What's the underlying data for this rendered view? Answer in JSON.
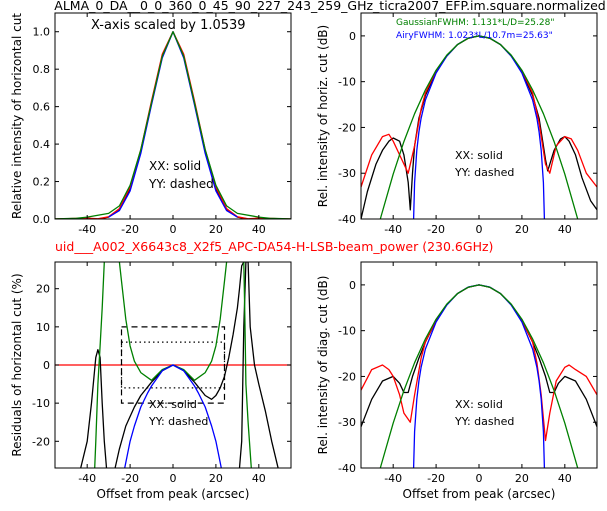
{
  "figure": {
    "title": "ALMA_0_DA__0_0_360_0_45_90_227_243_259_GHz_ticra2007_EFP.im.square.normalized",
    "subtitle": "uid___A002_X6643c8_X2f5_APC-DA54-H-LSB-beam_power (230.6GHz)",
    "subtitle_color": "#ff0000"
  },
  "colors": {
    "red": "#ff0000",
    "green": "#008000",
    "blue": "#0000ff",
    "black": "#000000"
  },
  "chart_data": [
    {
      "id": "top-left",
      "type": "line",
      "annotation": "X-axis scaled by 1.0539",
      "text_notes": [
        "XX: solid",
        "YY: dashed"
      ],
      "xlabel": "",
      "ylabel": "Relative intensity of horizontal cut",
      "xlim": [
        -55,
        55
      ],
      "ylim": [
        0,
        1.1
      ],
      "xticks": [
        -40,
        -20,
        0,
        20,
        40
      ],
      "yticks": [
        0.0,
        0.2,
        0.4,
        0.6,
        0.8,
        1.0
      ],
      "ytick_labels": [
        "0.0",
        "0.2",
        "0.4",
        "0.6",
        "0.8",
        "1.0"
      ],
      "series": [
        {
          "color": "black",
          "x": [
            -55,
            -45,
            -40,
            -35,
            -30,
            -25,
            -20,
            -15,
            -10,
            -5,
            0,
            5,
            10,
            15,
            20,
            25,
            30,
            35,
            40,
            45,
            55
          ],
          "y": [
            0,
            0.002,
            0.003,
            0,
            0.01,
            0.05,
            0.16,
            0.36,
            0.62,
            0.87,
            1.0,
            0.87,
            0.62,
            0.36,
            0.16,
            0.05,
            0.01,
            0,
            0.003,
            0.002,
            0
          ]
        },
        {
          "color": "red",
          "x": [
            -55,
            -45,
            -40,
            -35,
            -30,
            -25,
            -20,
            -15,
            -10,
            -5,
            0,
            5,
            10,
            15,
            20,
            25,
            30,
            35,
            40,
            45,
            55
          ],
          "y": [
            0,
            0.003,
            0.005,
            0.001,
            0.012,
            0.055,
            0.17,
            0.37,
            0.63,
            0.88,
            1.0,
            0.88,
            0.63,
            0.37,
            0.17,
            0.055,
            0.012,
            0.001,
            0.005,
            0.003,
            0
          ]
        },
        {
          "color": "blue",
          "x": [
            -30,
            -25,
            -20,
            -15,
            -10,
            -5,
            0,
            5,
            10,
            15,
            20,
            25,
            30
          ],
          "y": [
            0.01,
            0.045,
            0.15,
            0.35,
            0.61,
            0.86,
            1.0,
            0.86,
            0.61,
            0.35,
            0.15,
            0.045,
            0.01
          ]
        },
        {
          "color": "green",
          "x": [
            -55,
            -45,
            -40,
            -30,
            -25,
            -20,
            -15,
            -10,
            -5,
            0,
            5,
            10,
            15,
            20,
            25,
            30,
            40,
            45,
            55
          ],
          "y": [
            0.0005,
            0.004,
            0.01,
            0.03,
            0.07,
            0.18,
            0.37,
            0.62,
            0.87,
            1.0,
            0.87,
            0.62,
            0.37,
            0.18,
            0.07,
            0.03,
            0.01,
            0.004,
            0.0005
          ]
        }
      ]
    },
    {
      "id": "top-right",
      "type": "line",
      "legend_texts": [
        {
          "text": "GaussianFWHM: 1.131*L/D=25.28\"",
          "color": "green"
        },
        {
          "text": "AiryFWHM: 1.023*L/10.7m=25.63\"",
          "color": "blue"
        }
      ],
      "text_notes": [
        "XX: solid",
        "YY: dashed"
      ],
      "xlabel": "",
      "ylabel": "Rel. intensity of horiz. cut (dB)",
      "xlim": [
        -55,
        55
      ],
      "ylim": [
        -40,
        5
      ],
      "xticks": [
        -40,
        -20,
        0,
        20,
        40
      ],
      "yticks": [
        -40,
        -30,
        -20,
        -10,
        0
      ],
      "series": [
        {
          "color": "black",
          "x": [
            -55,
            -52,
            -48,
            -45,
            -42,
            -40,
            -37,
            -35,
            -33,
            -32,
            -31,
            -30,
            -28,
            -25,
            -20,
            -15,
            -10,
            -5,
            0,
            5,
            10,
            15,
            20,
            25,
            28,
            30,
            31,
            32,
            35,
            38,
            40,
            42,
            45,
            48,
            52,
            55
          ],
          "y": [
            -40,
            -34,
            -28,
            -25,
            -23,
            -22.3,
            -23,
            -26,
            -32,
            -38,
            -30,
            -24,
            -18,
            -13,
            -7.8,
            -4.4,
            -1.9,
            -0.5,
            0,
            -0.5,
            -1.9,
            -4.4,
            -7.8,
            -13,
            -18,
            -24,
            -27,
            -29.5,
            -25,
            -22.5,
            -22,
            -23,
            -26,
            -31,
            -36,
            -38
          ]
        },
        {
          "color": "red",
          "x": [
            -55,
            -50,
            -45,
            -42,
            -40,
            -37,
            -33,
            -30,
            -27,
            -25,
            -20,
            -15,
            -10,
            -5,
            0,
            5,
            10,
            15,
            20,
            25,
            28,
            31,
            33,
            36,
            40,
            43,
            46,
            50,
            55
          ],
          "y": [
            -33,
            -26,
            -22,
            -21.5,
            -23,
            -26,
            -30,
            -24,
            -16,
            -12.5,
            -7.6,
            -4.3,
            -1.9,
            -0.5,
            0,
            -0.5,
            -1.9,
            -4.3,
            -7.6,
            -12.5,
            -19,
            -28,
            -30,
            -24,
            -22,
            -22.5,
            -25,
            -30,
            -33
          ]
        },
        {
          "color": "blue",
          "x": [
            -30.5,
            -30,
            -29,
            -28,
            -27,
            -25,
            -20,
            -15,
            -10,
            -5,
            0,
            5,
            10,
            15,
            20,
            25,
            27,
            28,
            29,
            30,
            30.5
          ],
          "y": [
            -40,
            -32,
            -25,
            -21,
            -18,
            -14,
            -8.1,
            -4.4,
            -1.9,
            -0.46,
            0,
            -0.46,
            -1.9,
            -4.4,
            -8.1,
            -14,
            -18,
            -21,
            -25,
            -32,
            -40
          ]
        },
        {
          "color": "green",
          "x": [
            -46,
            -40,
            -35,
            -30,
            -25,
            -20,
            -15,
            -10,
            -5,
            0,
            5,
            10,
            15,
            20,
            25,
            30,
            35,
            40,
            46
          ],
          "y": [
            -40,
            -30.2,
            -23.1,
            -17,
            -11.8,
            -7.5,
            -4.2,
            -1.9,
            -0.5,
            0,
            -0.5,
            -1.9,
            -4.2,
            -7.5,
            -11.8,
            -17,
            -23.1,
            -30.2,
            -40
          ]
        }
      ]
    },
    {
      "id": "bottom-left",
      "type": "line",
      "text_notes": [
        "XX: solid",
        "YY: dashed"
      ],
      "xlabel": "Offset from peak (arcsec)",
      "ylabel": "Residuals of horizontal cut (%)",
      "xlim": [
        -55,
        55
      ],
      "ylim": [
        -27,
        27
      ],
      "xticks": [
        -40,
        -20,
        0,
        20,
        40
      ],
      "yticks": [
        -20,
        -10,
        0,
        10,
        20
      ],
      "reference_line": {
        "y": 0,
        "color": "red"
      },
      "boxes": [
        {
          "style": "dashed",
          "x": [
            -24,
            24
          ],
          "y": [
            -10,
            10
          ]
        },
        {
          "style": "dotted",
          "x": [
            -24,
            24
          ],
          "y": [
            -6,
            6
          ]
        }
      ],
      "series": [
        {
          "color": "black",
          "x": [
            -43,
            -40,
            -38,
            -36,
            -35,
            -34,
            -33,
            -32,
            -31
          ],
          "y": [
            -27,
            -20,
            -10,
            2,
            4,
            2,
            -10,
            -20,
            -27
          ]
        },
        {
          "color": "black",
          "x": [
            -27,
            -25,
            -22,
            -18,
            -15,
            -10,
            -5,
            0,
            5,
            10,
            15,
            18,
            20,
            22,
            24,
            26,
            28,
            30,
            31,
            32,
            33,
            33.5
          ],
          "y": [
            -27,
            -22,
            -16,
            -11,
            -8,
            -4.5,
            -1.5,
            0,
            -1.5,
            -4.5,
            -8,
            -9,
            -8,
            -6,
            -3,
            2,
            8,
            15,
            20,
            26,
            27,
            27
          ]
        },
        {
          "color": "black",
          "x": [
            31,
            32,
            33,
            34,
            35,
            36,
            38,
            40,
            43,
            46,
            49
          ],
          "y": [
            -27,
            -20,
            10,
            27,
            27,
            10,
            0,
            -5,
            -12,
            -20,
            -27
          ]
        },
        {
          "color": "green",
          "x": [
            -36.5,
            -36,
            -35,
            -34,
            -33,
            -32
          ],
          "y": [
            -27,
            -20,
            -5,
            5,
            15,
            27
          ]
        },
        {
          "color": "green",
          "x": [
            -25,
            -24,
            -22,
            -20,
            -18,
            -15,
            -10,
            -5,
            0,
            5,
            10,
            15,
            18,
            20,
            22,
            24,
            25
          ],
          "y": [
            27,
            22,
            12,
            5,
            1,
            -2,
            -4,
            -1.2,
            0,
            -1.2,
            -4,
            -2,
            1,
            5,
            12,
            22,
            27
          ]
        },
        {
          "color": "green",
          "x": [
            33,
            33.5,
            34,
            35,
            36.5
          ],
          "y": [
            27,
            12,
            -5,
            -15,
            -27
          ]
        },
        {
          "color": "blue",
          "x": [
            -22.5,
            -20,
            -18,
            -15,
            -12,
            -10,
            -5,
            0,
            5,
            10,
            12,
            15,
            18,
            20,
            22.5
          ],
          "y": [
            -27,
            -20,
            -16,
            -11,
            -7.5,
            -5.5,
            -1.5,
            0,
            -1.5,
            -5.5,
            -7.5,
            -11,
            -16,
            -20,
            -27
          ]
        }
      ]
    },
    {
      "id": "bottom-right",
      "type": "line",
      "text_notes": [
        "XX: solid",
        "YY: dashed"
      ],
      "xlabel": "Offset from peak (arcsec)",
      "ylabel": "Rel. intensity of diag. cut (dB)",
      "xlim": [
        -55,
        55
      ],
      "ylim": [
        -40,
        5
      ],
      "xticks": [
        -40,
        -20,
        0,
        20,
        40
      ],
      "yticks": [
        -40,
        -30,
        -20,
        -10,
        0
      ],
      "series": [
        {
          "color": "black",
          "x": [
            -55,
            -50,
            -45,
            -40,
            -37,
            -35,
            -33,
            -31,
            -28,
            -25,
            -20,
            -15,
            -10,
            -5,
            0,
            5,
            10,
            15,
            20,
            25,
            28,
            31,
            33,
            35,
            37,
            40,
            45,
            50,
            55
          ],
          "y": [
            -31,
            -25,
            -21,
            -20,
            -21.5,
            -23.5,
            -23.5,
            -20,
            -16,
            -12.5,
            -7.8,
            -4.3,
            -1.9,
            -0.5,
            0,
            -0.5,
            -1.9,
            -4.3,
            -7.8,
            -12.5,
            -16,
            -20,
            -23.5,
            -23.5,
            -21.5,
            -20,
            -21,
            -25,
            -31
          ]
        },
        {
          "color": "red",
          "x": [
            -55,
            -50,
            -45,
            -42,
            -40,
            -37,
            -35,
            -32,
            -30,
            -27,
            -25,
            -20,
            -15,
            -10,
            -5,
            0,
            5,
            10,
            15,
            20,
            25,
            27,
            29,
            31,
            33,
            36,
            40,
            42,
            45,
            50,
            55
          ],
          "y": [
            -23,
            -18.5,
            -17.5,
            -18.5,
            -20,
            -24,
            -28,
            -30,
            -24,
            -16,
            -12.5,
            -7.6,
            -4.3,
            -1.9,
            -0.5,
            0,
            -0.5,
            -1.9,
            -4.3,
            -7.6,
            -12.5,
            -17,
            -24,
            -34,
            -28,
            -21,
            -18,
            -17.5,
            -18.5,
            -20,
            -24
          ]
        },
        {
          "color": "blue",
          "x": [
            -30.5,
            -30,
            -29,
            -28,
            -27,
            -25,
            -20,
            -15,
            -10,
            -5,
            0,
            5,
            10,
            15,
            20,
            25,
            27,
            28,
            29,
            30,
            30.5
          ],
          "y": [
            -40,
            -32,
            -25,
            -21,
            -18,
            -14,
            -8.1,
            -4.4,
            -1.9,
            -0.46,
            0,
            -0.46,
            -1.9,
            -4.4,
            -8.1,
            -14,
            -18,
            -21,
            -25,
            -32,
            -40
          ]
        },
        {
          "color": "green",
          "x": [
            -46,
            -40,
            -35,
            -30,
            -25,
            -20,
            -15,
            -10,
            -5,
            0,
            5,
            10,
            15,
            20,
            25,
            30,
            35,
            40,
            46
          ],
          "y": [
            -40,
            -30.2,
            -23.1,
            -17,
            -11.8,
            -7.5,
            -4.2,
            -1.9,
            -0.5,
            0,
            -0.5,
            -1.9,
            -4.2,
            -7.5,
            -11.8,
            -17,
            -23.1,
            -30.2,
            -40
          ]
        }
      ]
    }
  ]
}
